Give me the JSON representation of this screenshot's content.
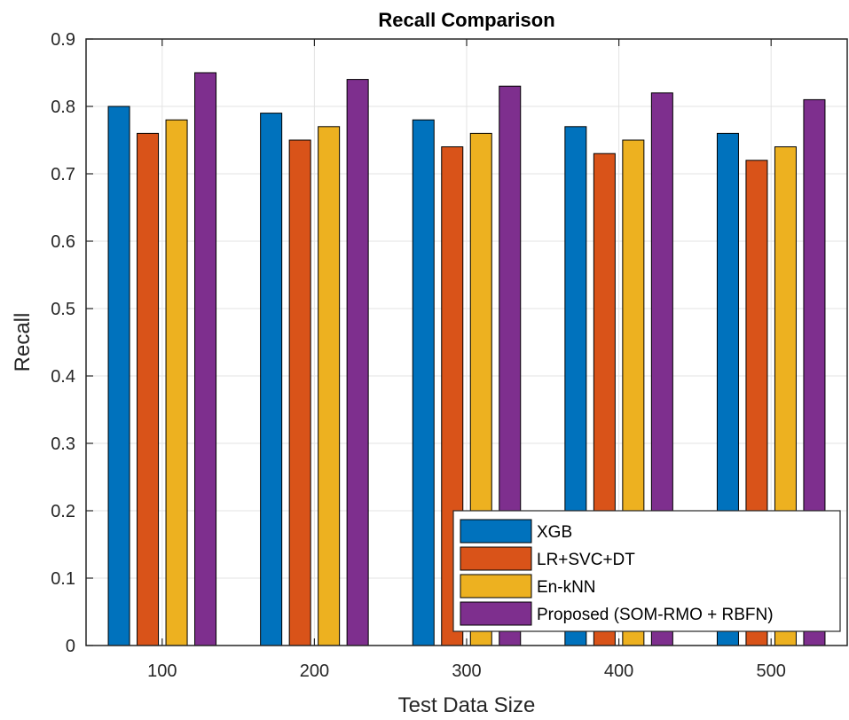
{
  "chart_data": {
    "type": "bar",
    "title": "Recall Comparison",
    "xlabel": "Test Data Size",
    "ylabel": "Recall",
    "categories": [
      "100",
      "200",
      "300",
      "400",
      "500"
    ],
    "ylim": [
      0,
      0.9
    ],
    "yticks": [
      "0",
      "0.1",
      "0.2",
      "0.3",
      "0.4",
      "0.5",
      "0.6",
      "0.7",
      "0.8",
      "0.9"
    ],
    "grid": true,
    "legend_position": "bottom-right",
    "series": [
      {
        "name": "XGB",
        "color": "#0072BD",
        "values": [
          0.8,
          0.79,
          0.78,
          0.77,
          0.76
        ]
      },
      {
        "name": "LR+SVC+DT",
        "color": "#D95319",
        "values": [
          0.76,
          0.75,
          0.74,
          0.73,
          0.72
        ]
      },
      {
        "name": "En-kNN",
        "color": "#EDB120",
        "values": [
          0.78,
          0.77,
          0.76,
          0.75,
          0.74
        ]
      },
      {
        "name": "Proposed (SOM-RMO + RBFN)",
        "color": "#7E2F8E",
        "values": [
          0.85,
          0.84,
          0.83,
          0.82,
          0.81
        ]
      }
    ]
  }
}
